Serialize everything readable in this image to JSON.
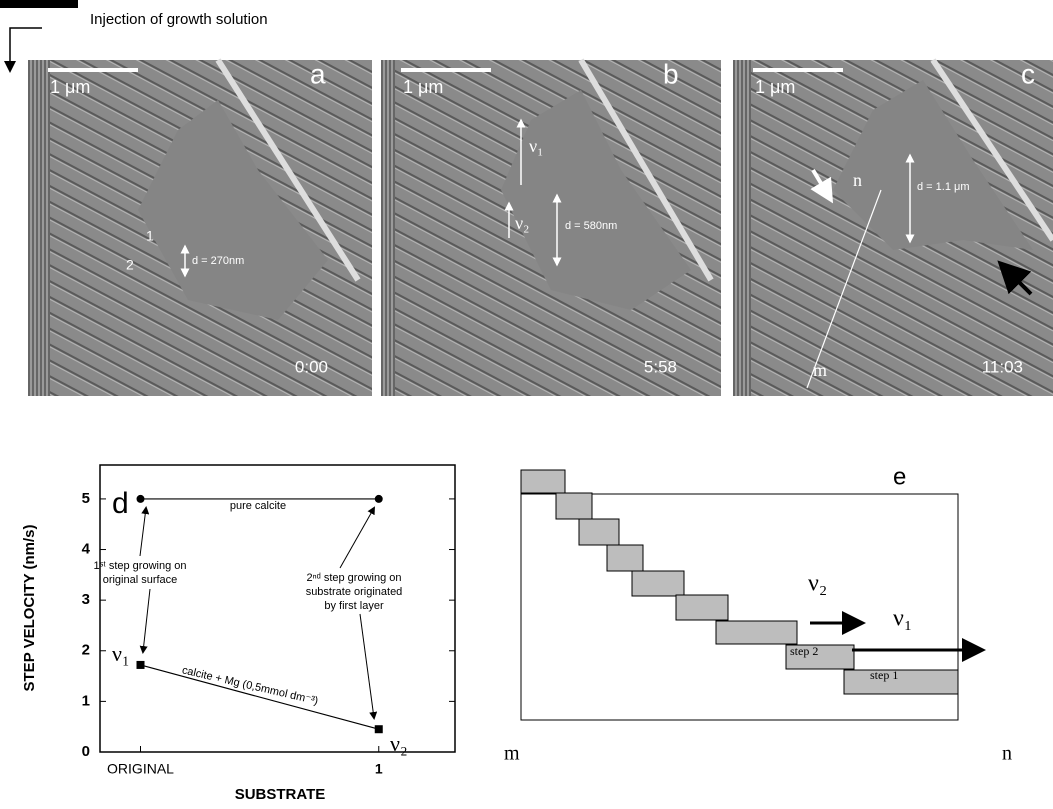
{
  "header": {
    "label": "Injection of growth solution"
  },
  "panels": [
    {
      "scale": "1 μm",
      "letter": "a",
      "time": "0:00",
      "notes": [
        "1",
        "2",
        "d = 270nm"
      ]
    },
    {
      "scale": "1 μm",
      "letter": "b",
      "time": "5:58",
      "notes": [
        "ν₁",
        "ν₂",
        "d = 580nm"
      ]
    },
    {
      "scale": "1 μm",
      "letter": "c",
      "time": "11:03",
      "notes": [
        "n",
        "m",
        "d = 1.1 μm"
      ]
    }
  ],
  "chart_data": {
    "type": "scatter",
    "letter": "d",
    "x_label": "SUBSTRATE",
    "y_label": "STEP VELOCITY (nm/s)",
    "xlim": [
      -0.17,
      1.32
    ],
    "xticks": [
      {
        "value": 0,
        "label": "ORIGINAL"
      },
      1
    ],
    "ylim": [
      0,
      5.67
    ],
    "yticks": [
      0,
      1,
      2,
      3,
      4,
      5
    ],
    "series": [
      {
        "name": "pure calcite",
        "color": "#000000",
        "marker": "circle",
        "x": [
          0,
          1
        ],
        "values": [
          5,
          5
        ]
      },
      {
        "name": "calcite + Mg (0,5mmol dm⁻³)",
        "color": "#000000",
        "marker": "square",
        "x": [
          0,
          1
        ],
        "values": [
          1.72,
          0.45
        ]
      }
    ],
    "annotations": [
      "1ˢᵗ step growing on",
      "original surface",
      "2ⁿᵈ step growing on",
      "substrate originated",
      "by first layer",
      "ν₁",
      "ν₂"
    ]
  },
  "diagram": {
    "letter": "e",
    "labels": [
      "ν₂",
      "ν₁",
      "step 2",
      "step 1",
      "m",
      "n"
    ]
  }
}
